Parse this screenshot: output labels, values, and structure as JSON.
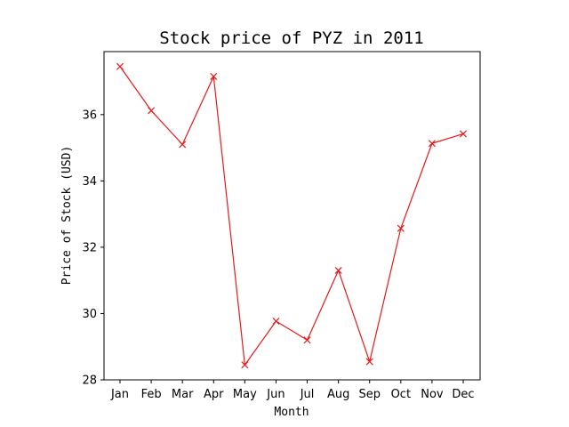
{
  "chart_data": {
    "type": "line",
    "title": "Stock price of PYZ in 2011",
    "xlabel": "Month",
    "ylabel": "Price of Stock (USD)",
    "categories": [
      "Jan",
      "Feb",
      "Mar",
      "Apr",
      "May",
      "Jun",
      "Jul",
      "Aug",
      "Sep",
      "Oct",
      "Nov",
      "Dec"
    ],
    "series": [
      {
        "values": [
          37.45,
          36.12,
          35.1,
          37.15,
          28.45,
          29.77,
          29.2,
          31.3,
          28.55,
          32.57,
          35.13,
          35.42
        ],
        "color": "#e8191b",
        "marker": "x"
      }
    ],
    "ylim": [
      28,
      37.9
    ],
    "yticks": [
      28,
      30,
      32,
      34,
      36
    ],
    "grid": false,
    "legend": "none"
  }
}
